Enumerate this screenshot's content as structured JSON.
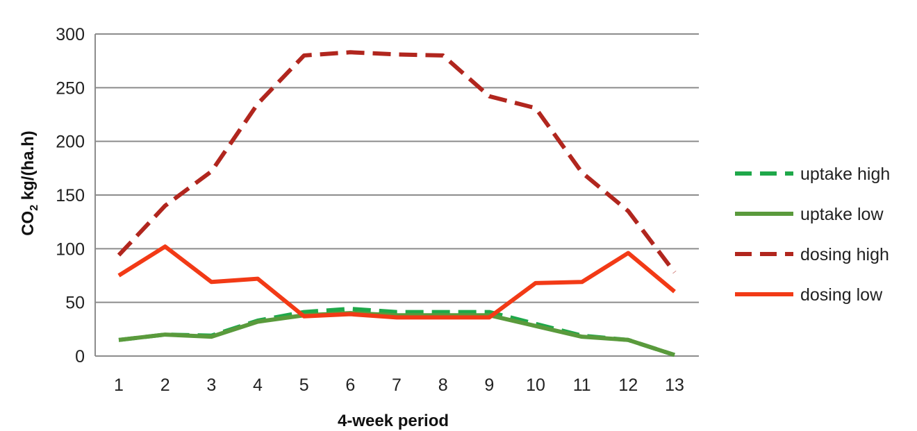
{
  "chart_data": {
    "type": "line",
    "x": [
      1,
      2,
      3,
      4,
      5,
      6,
      7,
      8,
      9,
      10,
      11,
      12,
      13
    ],
    "xlabel": "4-week period",
    "ylabel": "CO2 kg/(ha.h)",
    "ylabel_main": "CO",
    "ylabel_sub": "2",
    "ylabel_rest": " kg/(ha.h)",
    "ylim": [
      0,
      300
    ],
    "yticks": [
      0,
      50,
      100,
      150,
      200,
      250,
      300
    ],
    "grid": true,
    "legend_position": "right",
    "series": [
      {
        "name": "uptake high",
        "color": "#1fa84a",
        "style": "dashed",
        "values": [
          15,
          20,
          19,
          33,
          41,
          44,
          41,
          41,
          41,
          30,
          19,
          15,
          1
        ]
      },
      {
        "name": "uptake low",
        "color": "#5a9a3c",
        "style": "solid",
        "values": [
          15,
          20,
          18,
          32,
          38,
          40,
          38,
          38,
          38,
          28,
          18,
          15,
          1
        ]
      },
      {
        "name": "dosing high",
        "color": "#b1261e",
        "style": "dashed",
        "values": [
          94,
          140,
          172,
          235,
          280,
          283,
          281,
          280,
          242,
          231,
          171,
          135,
          78
        ]
      },
      {
        "name": "dosing low",
        "color": "#f23a16",
        "style": "solid",
        "values": [
          75,
          102,
          69,
          72,
          37,
          39,
          36,
          36,
          36,
          68,
          69,
          96,
          60
        ]
      }
    ]
  }
}
